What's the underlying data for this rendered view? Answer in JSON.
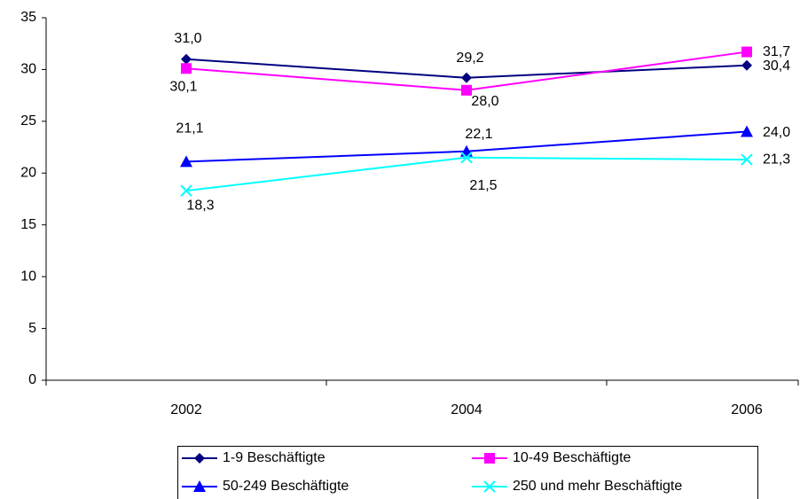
{
  "chart_data": {
    "type": "line",
    "categories": [
      "2002",
      "2004",
      "2006"
    ],
    "series": [
      {
        "name": "1-9 Beschäftigte",
        "color": "#000080",
        "marker": "diamond",
        "values": [
          31.0,
          29.2,
          30.4
        ],
        "value_labels": [
          "31,0",
          "29,2",
          "30,4"
        ]
      },
      {
        "name": "10-49 Beschäftigte",
        "color": "#ff00ff",
        "marker": "square",
        "values": [
          30.1,
          28.0,
          31.7
        ],
        "value_labels": [
          "30,1",
          "28,0",
          "31,7"
        ]
      },
      {
        "name": "50-249 Beschäftigte",
        "color": "#0000ff",
        "marker": "triangle",
        "values": [
          21.1,
          22.1,
          24.0
        ],
        "value_labels": [
          "21,1",
          "22,1",
          "24,0"
        ]
      },
      {
        "name": "250 und mehr Beschäftigte",
        "color": "#00ffff",
        "marker": "x",
        "values": [
          18.3,
          21.5,
          21.3
        ],
        "value_labels": [
          "18,3",
          "21,5",
          "21,3"
        ]
      }
    ],
    "ylim": [
      0,
      35
    ],
    "yticks": [
      0,
      5,
      10,
      15,
      20,
      25,
      30,
      35
    ],
    "grid": false
  }
}
